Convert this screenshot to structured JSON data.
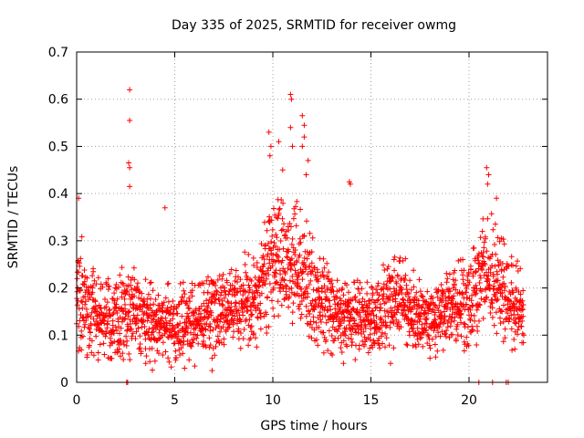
{
  "chart_data": {
    "type": "scatter",
    "title": "Day 335 of 2025, SRMTID for receiver owmg",
    "xlabel": "GPS time / hours",
    "ylabel": "SRMTID / TECUs",
    "xlim": [
      0,
      24
    ],
    "ylim": [
      0,
      0.7
    ],
    "xticks": [
      0,
      5,
      10,
      15,
      20
    ],
    "yticks": [
      0,
      0.1,
      0.2,
      0.3,
      0.4,
      0.5,
      0.6,
      0.7
    ],
    "ytick_labels": [
      "0",
      "0.1",
      "0.2",
      "0.3",
      "0.4",
      "0.5",
      "0.6",
      "0.7"
    ],
    "grid": true,
    "marker": "+",
    "series_color": "#ff0000",
    "profile": {
      "description": "approximate local median and spread of SRMTID by hour",
      "x": [
        0.0,
        1.0,
        2.0,
        2.6,
        3.0,
        4.0,
        5.0,
        6.0,
        7.0,
        8.0,
        9.0,
        9.6,
        10.0,
        10.5,
        11.0,
        11.5,
        12.0,
        13.0,
        14.0,
        15.0,
        16.0,
        16.5,
        17.0,
        18.0,
        19.0,
        20.0,
        20.5,
        21.0,
        21.5,
        22.0,
        22.8
      ],
      "median": [
        0.19,
        0.14,
        0.13,
        0.17,
        0.15,
        0.13,
        0.12,
        0.13,
        0.15,
        0.16,
        0.17,
        0.22,
        0.26,
        0.27,
        0.25,
        0.24,
        0.2,
        0.15,
        0.14,
        0.13,
        0.16,
        0.2,
        0.15,
        0.13,
        0.15,
        0.17,
        0.21,
        0.24,
        0.22,
        0.17,
        0.15
      ],
      "spread": [
        0.1,
        0.07,
        0.07,
        0.09,
        0.08,
        0.07,
        0.06,
        0.06,
        0.07,
        0.07,
        0.08,
        0.1,
        0.11,
        0.11,
        0.11,
        0.1,
        0.09,
        0.07,
        0.06,
        0.06,
        0.07,
        0.08,
        0.06,
        0.06,
        0.07,
        0.08,
        0.09,
        0.1,
        0.09,
        0.08,
        0.07
      ]
    },
    "notable_points": [
      {
        "x": 0.1,
        "y": 0.39
      },
      {
        "x": 2.7,
        "y": 0.62
      },
      {
        "x": 2.7,
        "y": 0.555
      },
      {
        "x": 2.65,
        "y": 0.465
      },
      {
        "x": 2.7,
        "y": 0.455
      },
      {
        "x": 2.7,
        "y": 0.415
      },
      {
        "x": 4.5,
        "y": 0.37
      },
      {
        "x": 9.8,
        "y": 0.53
      },
      {
        "x": 9.9,
        "y": 0.5
      },
      {
        "x": 9.85,
        "y": 0.48
      },
      {
        "x": 10.3,
        "y": 0.51
      },
      {
        "x": 10.9,
        "y": 0.61
      },
      {
        "x": 10.95,
        "y": 0.6
      },
      {
        "x": 10.9,
        "y": 0.54
      },
      {
        "x": 11.0,
        "y": 0.5
      },
      {
        "x": 11.5,
        "y": 0.565
      },
      {
        "x": 11.6,
        "y": 0.545
      },
      {
        "x": 11.6,
        "y": 0.52
      },
      {
        "x": 11.5,
        "y": 0.5
      },
      {
        "x": 11.8,
        "y": 0.47
      },
      {
        "x": 11.7,
        "y": 0.44
      },
      {
        "x": 10.5,
        "y": 0.45
      },
      {
        "x": 13.9,
        "y": 0.425
      },
      {
        "x": 13.95,
        "y": 0.42
      },
      {
        "x": 20.9,
        "y": 0.455
      },
      {
        "x": 21.0,
        "y": 0.44
      },
      {
        "x": 20.95,
        "y": 0.42
      },
      {
        "x": 21.4,
        "y": 0.39
      },
      {
        "x": 13.6,
        "y": 0.04
      },
      {
        "x": 5.5,
        "y": 0.03
      },
      {
        "x": 6.9,
        "y": 0.025
      },
      {
        "x": 16.0,
        "y": 0.04
      },
      {
        "x": 2.55,
        "y": 0.0
      },
      {
        "x": 2.6,
        "y": 0.0
      },
      {
        "x": 20.5,
        "y": 0.0
      },
      {
        "x": 21.2,
        "y": 0.0
      },
      {
        "x": 21.9,
        "y": 0.0
      },
      {
        "x": 22.0,
        "y": 0.0
      }
    ]
  }
}
